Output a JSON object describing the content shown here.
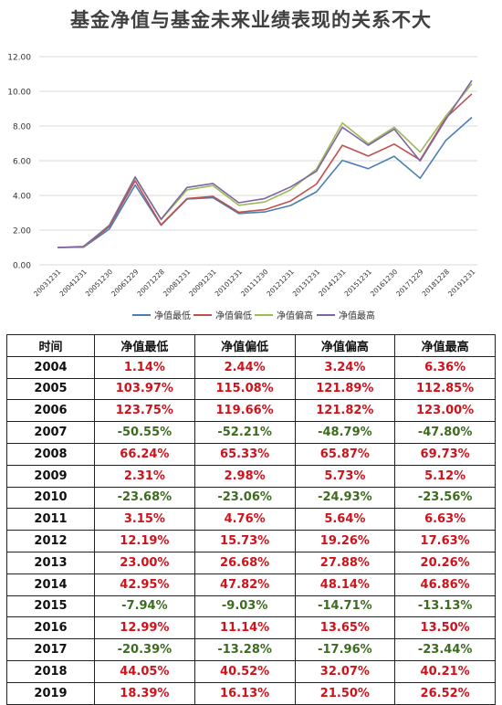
{
  "title": "基金净值与基金未来业绩表现的关系不大",
  "chart_data": {
    "type": "line",
    "categories": [
      "20031231",
      "20041231",
      "20051230",
      "20061229",
      "20071228",
      "20081231",
      "20091231",
      "20101231",
      "20111230",
      "20121231",
      "20131231",
      "20141231",
      "20151231",
      "20161230",
      "20171229",
      "20181228",
      "20191231"
    ],
    "ylim": [
      0,
      12
    ],
    "yticks": [
      "0.00",
      "2.00",
      "4.00",
      "6.00",
      "8.00",
      "10.00",
      "12.00"
    ],
    "ytick_values": [
      0,
      2,
      4,
      6,
      8,
      10,
      12
    ],
    "legend_position": "bottom",
    "grid": "horizontal",
    "series": [
      {
        "name": "净值最低",
        "color": "#4a7fb5",
        "values": [
          1.0,
          1.01,
          2.06,
          4.6,
          2.28,
          3.79,
          3.87,
          2.96,
          3.05,
          3.42,
          4.21,
          6.02,
          5.54,
          6.26,
          4.99,
          7.18,
          8.5
        ]
      },
      {
        "name": "净值偏低",
        "color": "#c0504d",
        "values": [
          1.0,
          1.02,
          2.2,
          4.84,
          2.31,
          3.82,
          3.94,
          3.03,
          3.18,
          3.68,
          4.66,
          6.89,
          6.27,
          6.96,
          6.04,
          8.48,
          9.85
        ]
      },
      {
        "name": "净值偏高",
        "color": "#9bbb59",
        "values": [
          1.0,
          1.03,
          2.29,
          5.08,
          2.6,
          4.32,
          4.57,
          3.43,
          3.62,
          4.32,
          5.52,
          8.18,
          6.98,
          7.93,
          6.5,
          8.58,
          10.43
        ]
      },
      {
        "name": "净值最高",
        "color": "#8064a2",
        "values": [
          1.0,
          1.06,
          2.26,
          5.04,
          2.63,
          4.46,
          4.69,
          3.58,
          3.82,
          4.49,
          5.4,
          7.93,
          6.89,
          7.82,
          5.99,
          8.4,
          10.63
        ]
      }
    ]
  },
  "table": {
    "headers": [
      "时间",
      "净值最低",
      "净值偏低",
      "净值偏高",
      "净值最高"
    ],
    "rows": [
      [
        "2004",
        "1.14%",
        "2.44%",
        "3.24%",
        "6.36%"
      ],
      [
        "2005",
        "103.97%",
        "115.08%",
        "121.89%",
        "112.85%"
      ],
      [
        "2006",
        "123.75%",
        "119.66%",
        "121.82%",
        "123.00%"
      ],
      [
        "2007",
        "-50.55%",
        "-52.21%",
        "-48.79%",
        "-47.80%"
      ],
      [
        "2008",
        "66.24%",
        "65.33%",
        "65.87%",
        "69.73%"
      ],
      [
        "2009",
        "2.31%",
        "2.98%",
        "5.73%",
        "5.12%"
      ],
      [
        "2010",
        "-23.68%",
        "-23.06%",
        "-24.93%",
        "-23.56%"
      ],
      [
        "2011",
        "3.15%",
        "4.76%",
        "5.64%",
        "6.63%"
      ],
      [
        "2012",
        "12.19%",
        "15.73%",
        "19.26%",
        "17.63%"
      ],
      [
        "2013",
        "23.00%",
        "26.68%",
        "27.88%",
        "20.26%"
      ],
      [
        "2014",
        "42.95%",
        "47.82%",
        "48.14%",
        "46.86%"
      ],
      [
        "2015",
        "-7.94%",
        "-9.03%",
        "-14.71%",
        "-13.13%"
      ],
      [
        "2016",
        "12.99%",
        "11.14%",
        "13.65%",
        "13.50%"
      ],
      [
        "2017",
        "-20.39%",
        "-13.28%",
        "-17.96%",
        "-23.44%"
      ],
      [
        "2018",
        "44.05%",
        "40.52%",
        "32.07%",
        "40.21%"
      ],
      [
        "2019",
        "18.39%",
        "16.13%",
        "21.50%",
        "26.52%"
      ]
    ]
  },
  "colors": {
    "positive": "#d0121b",
    "negative": "#3d6b20",
    "grid": "#d9d9d9",
    "axis_text": "#333333"
  }
}
